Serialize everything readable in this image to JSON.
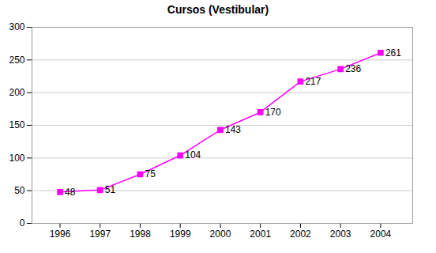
{
  "chart_data": {
    "type": "line",
    "title": "Cursos (Vestibular)",
    "x": [
      1996,
      1997,
      1998,
      1999,
      2000,
      2001,
      2002,
      2003,
      2004
    ],
    "values": [
      48,
      51,
      75,
      104,
      143,
      170,
      217,
      236,
      261
    ],
    "color": "#FF00FF",
    "marker": "square",
    "xlim": [
      1995.3,
      2004.8
    ],
    "xticks": [
      1996,
      1997,
      1998,
      1999,
      2000,
      2001,
      2002,
      2003,
      2004
    ],
    "ylim": [
      0,
      300
    ],
    "yticks": [
      0,
      50,
      100,
      150,
      200,
      250,
      300
    ],
    "grid": true,
    "data_labels": true
  }
}
